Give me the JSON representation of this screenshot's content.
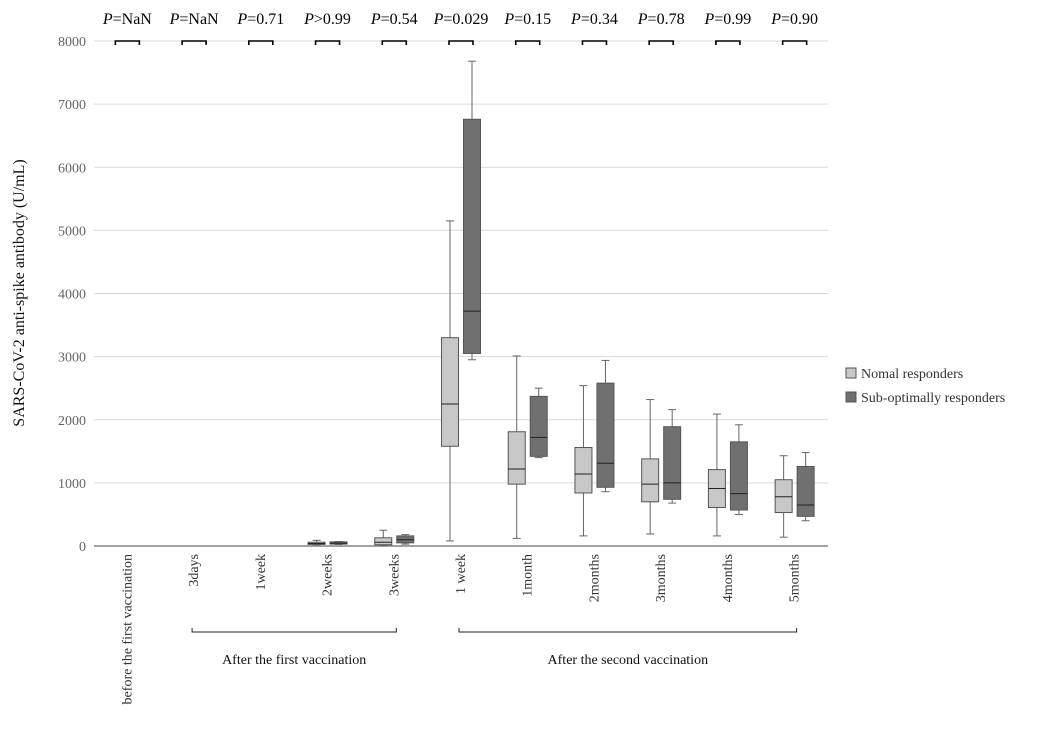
{
  "chart_data": {
    "type": "box",
    "ylabel": "SARS-CoV-2 anti-spike antibody (U/mL)",
    "ylim": [
      0,
      8000
    ],
    "yticks": [
      0,
      1000,
      2000,
      3000,
      4000,
      5000,
      6000,
      7000,
      8000
    ],
    "grid": true,
    "legend_position": "right",
    "categories": [
      "before the first vaccination",
      "3days",
      "1week",
      "2weeks",
      "3weeks",
      "1 week",
      "1month",
      "2months",
      "3months",
      "4months",
      "5months"
    ],
    "p_values": [
      {
        "prefix": "P",
        "text": "=NaN"
      },
      {
        "prefix": "P",
        "text": "=NaN"
      },
      {
        "prefix": "P",
        "text": "=0.71"
      },
      {
        "prefix": "P",
        "text": ">0.99"
      },
      {
        "prefix": "P",
        "text": "=0.54"
      },
      {
        "prefix": "P",
        "text": "=0.029"
      },
      {
        "prefix": "P",
        "text": "=0.15"
      },
      {
        "prefix": "P",
        "text": "=0.34"
      },
      {
        "prefix": "P",
        "text": "=0.78"
      },
      {
        "prefix": "P",
        "text": "=0.99"
      },
      {
        "prefix": "P",
        "text": "=0.90"
      }
    ],
    "groups": [
      {
        "label": "After the first vaccination",
        "from": 1,
        "to": 4
      },
      {
        "label": "After the second vaccination",
        "from": 5,
        "to": 10
      }
    ],
    "series": [
      {
        "name": "Nomal responders",
        "color": "#c8c8c8",
        "boxes": [
          {
            "min": 0,
            "q1": 0,
            "median": 0,
            "q3": 0,
            "max": 0
          },
          {
            "min": 0,
            "q1": 0,
            "median": 0,
            "q3": 0,
            "max": 0
          },
          {
            "min": 0,
            "q1": 0,
            "median": 0,
            "q3": 0,
            "max": 0
          },
          {
            "min": 20,
            "q1": 25,
            "median": 40,
            "q3": 60,
            "max": 90
          },
          {
            "min": 5,
            "q1": 20,
            "median": 60,
            "q3": 130,
            "max": 250
          },
          {
            "min": 80,
            "q1": 1580,
            "median": 2250,
            "q3": 3300,
            "max": 5150
          },
          {
            "min": 120,
            "q1": 980,
            "median": 1220,
            "q3": 1810,
            "max": 3010
          },
          {
            "min": 160,
            "q1": 840,
            "median": 1140,
            "q3": 1560,
            "max": 2540
          },
          {
            "min": 190,
            "q1": 700,
            "median": 980,
            "q3": 1380,
            "max": 2320
          },
          {
            "min": 160,
            "q1": 610,
            "median": 910,
            "q3": 1210,
            "max": 2090
          },
          {
            "min": 140,
            "q1": 530,
            "median": 780,
            "q3": 1050,
            "max": 1430
          }
        ]
      },
      {
        "name": "Sub-optimally responders",
        "color": "#707070",
        "boxes": [
          {
            "min": 0,
            "q1": 0,
            "median": 0,
            "q3": 0,
            "max": 0
          },
          {
            "min": 0,
            "q1": 0,
            "median": 0,
            "q3": 0,
            "max": 0
          },
          {
            "min": 0,
            "q1": 0,
            "median": 0,
            "q3": 0,
            "max": 0
          },
          {
            "min": 25,
            "q1": 30,
            "median": 45,
            "q3": 65,
            "max": 70
          },
          {
            "min": 30,
            "q1": 50,
            "median": 100,
            "q3": 160,
            "max": 180
          },
          {
            "min": 2950,
            "q1": 3050,
            "median": 3720,
            "q3": 6760,
            "max": 7680
          },
          {
            "min": 1400,
            "q1": 1420,
            "median": 1720,
            "q3": 2370,
            "max": 2500
          },
          {
            "min": 860,
            "q1": 930,
            "median": 1310,
            "q3": 2580,
            "max": 2940
          },
          {
            "min": 680,
            "q1": 740,
            "median": 1000,
            "q3": 1890,
            "max": 2160
          },
          {
            "min": 500,
            "q1": 570,
            "median": 830,
            "q3": 1650,
            "max": 1920
          },
          {
            "min": 400,
            "q1": 470,
            "median": 650,
            "q3": 1260,
            "max": 1480
          }
        ]
      }
    ]
  }
}
